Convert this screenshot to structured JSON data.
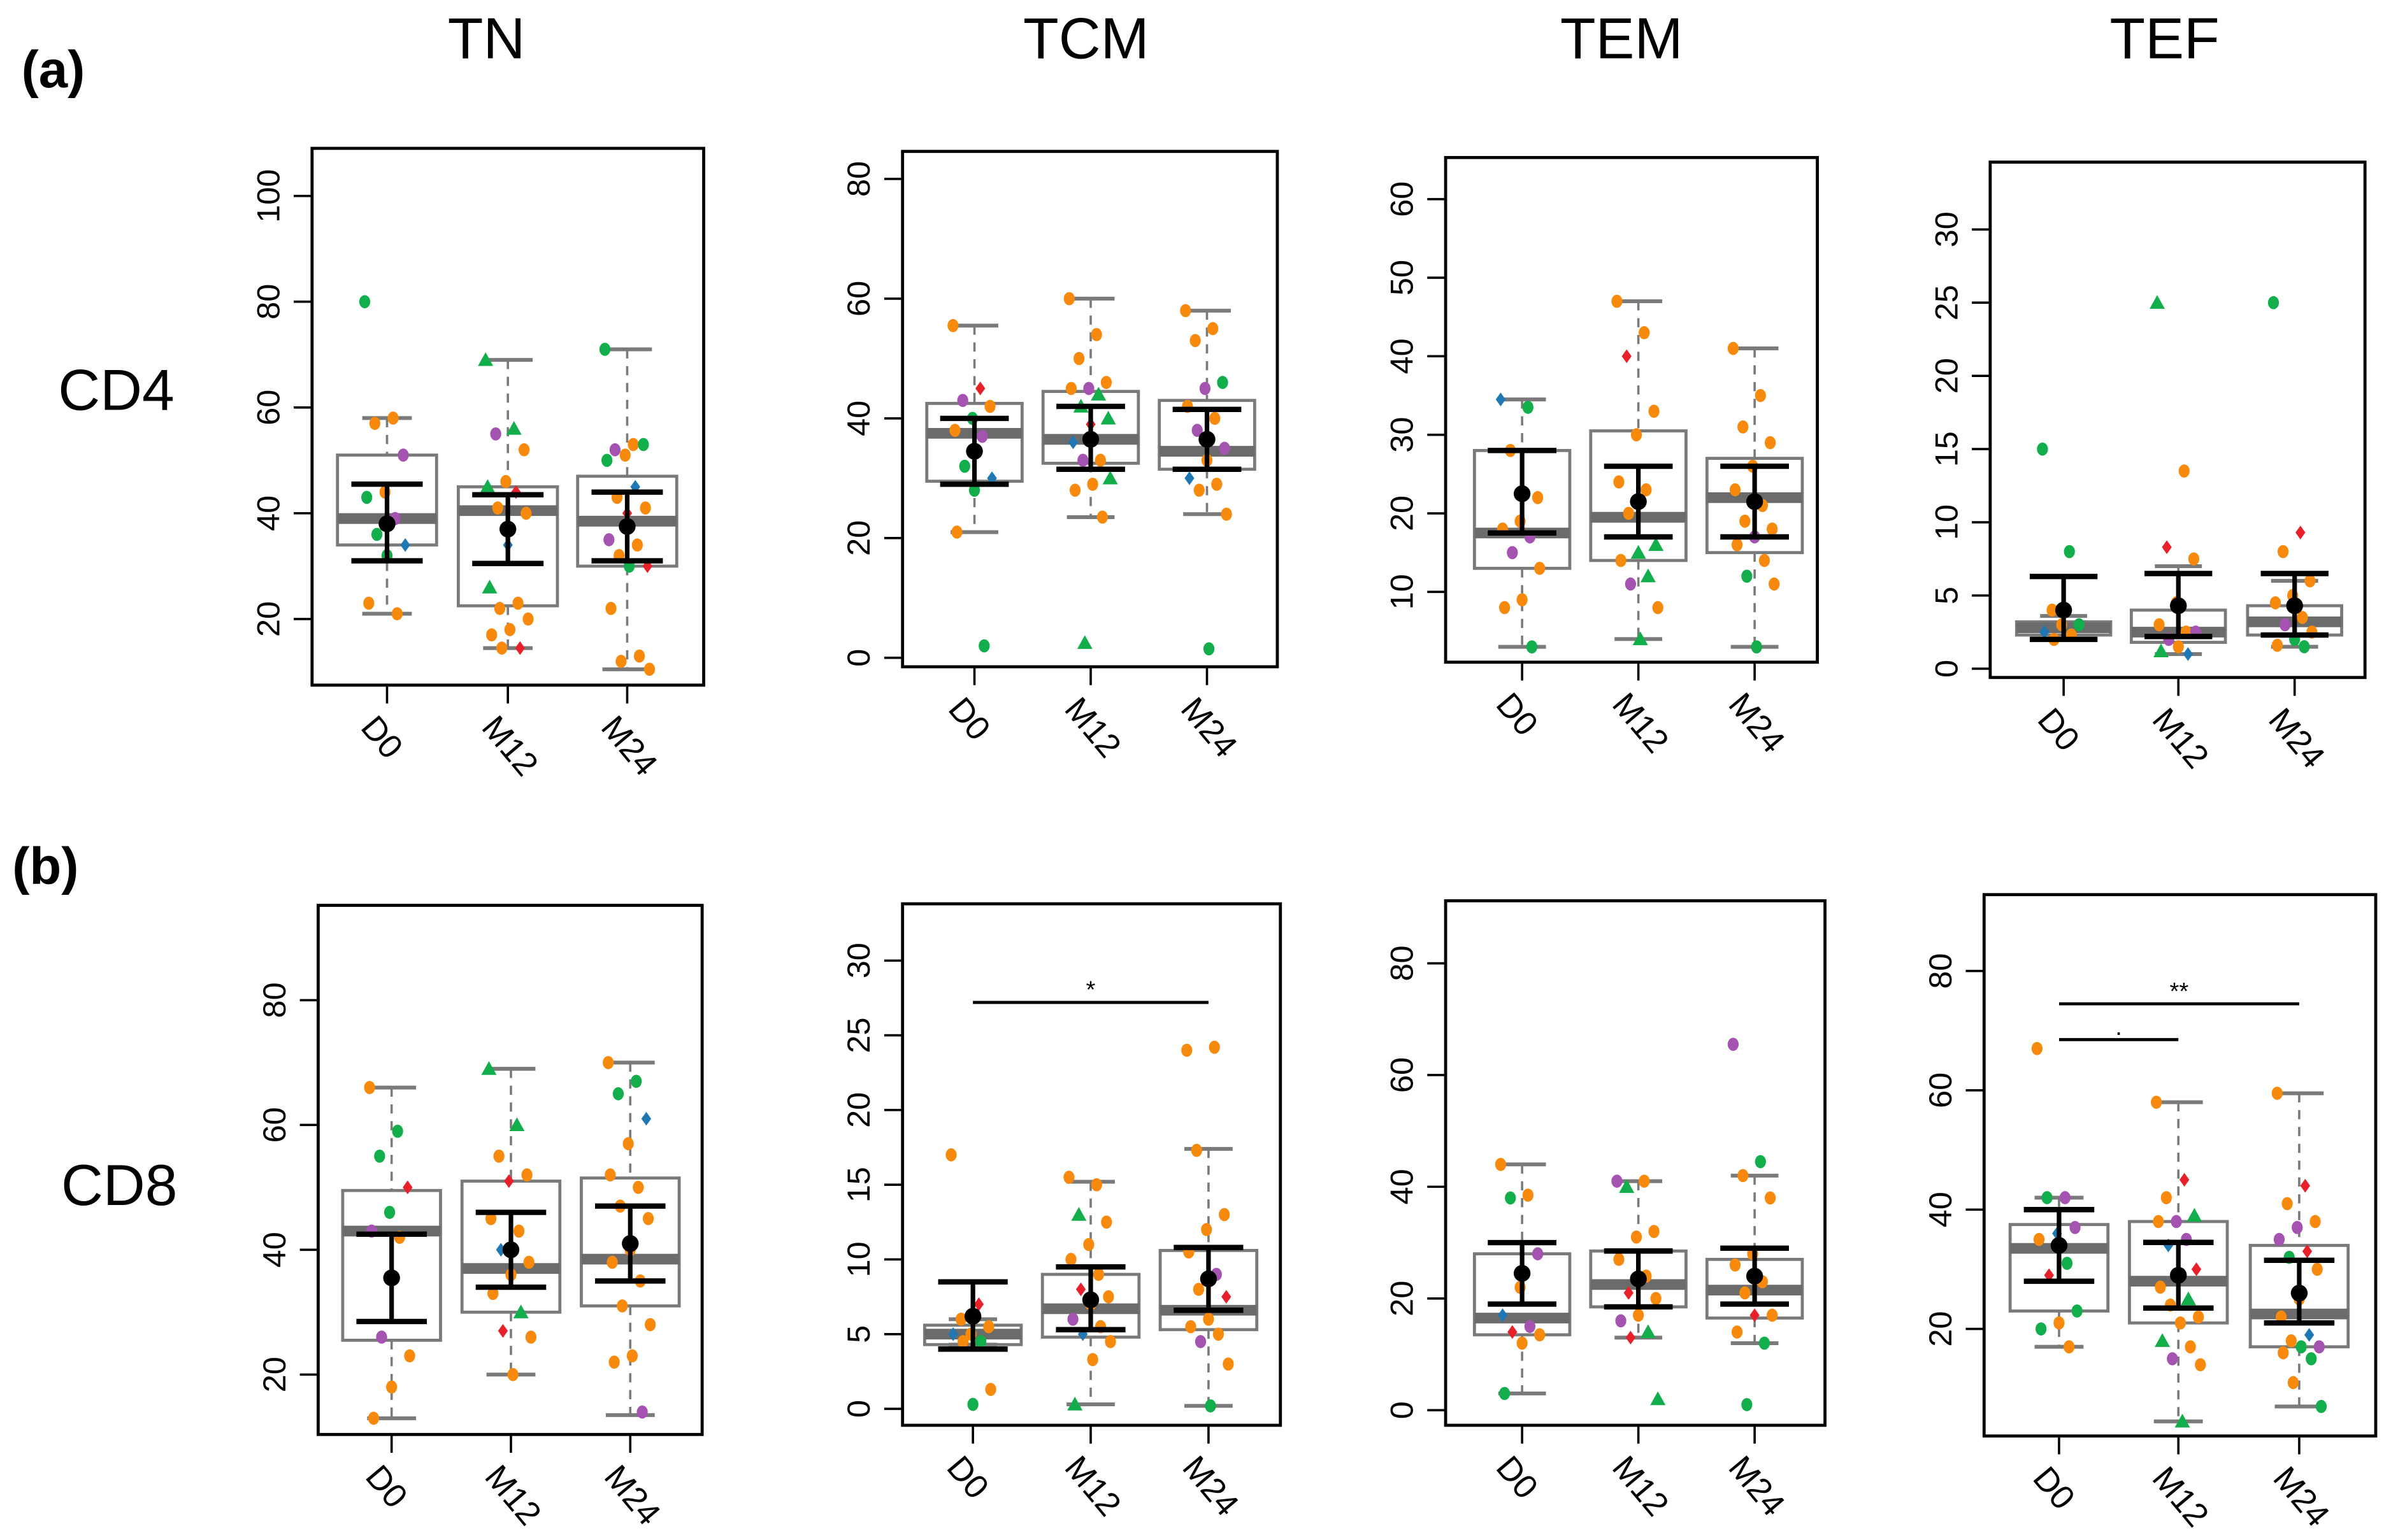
{
  "figure": {
    "panel_labels": [
      "(a)",
      "(b)"
    ],
    "row_labels": [
      "CD4",
      "CD8"
    ],
    "column_titles": [
      "TN",
      "TCM",
      "TEM",
      "TEF"
    ],
    "colors": {
      "o": "#F7890C",
      "g": "#12AE4B",
      "G": "#12AE4B",
      "p": "#A553B0",
      "b": "#1F78B4",
      "r": "#E8202A",
      "box": "#7a7a7a",
      "median": "#6b6b6b",
      "mean": "#000000"
    },
    "point_codes": {
      "o": "orange circle",
      "g": "green circle",
      "G": "green triangle",
      "p": "purple circle",
      "b": "blue diamond",
      "r": "red diamond"
    }
  },
  "chart_data": [
    {
      "type": "box",
      "row": "CD4",
      "title": "TN",
      "categories": [
        "D0",
        "M12",
        "M24"
      ],
      "ylim": [
        7.5,
        109
      ],
      "yticks": [
        20,
        40,
        60,
        80,
        100
      ],
      "groups": [
        {
          "whisker": [
            21,
            58
          ],
          "q1": 34,
          "median": 39,
          "q3": 51,
          "mean": 38,
          "ci": [
            31,
            45.5
          ],
          "points": "80g 58o 57o 51p 44o 43g 39p 36g 34b 32g 23o 21o"
        },
        {
          "whisker": [
            14.5,
            69
          ],
          "q1": 22.5,
          "median": 40.5,
          "q3": 45,
          "mean": 37,
          "ci": [
            30.5,
            43.5
          ],
          "points": "69G 56G 55p 52o 46o 45G 44r 41o 40o 34b 26G 23o 22o 20o 18o 17o 14.5r 14.5o"
        },
        {
          "whisker": [
            10.5,
            71
          ],
          "q1": 30,
          "median": 38.5,
          "q3": 47,
          "mean": 37.5,
          "ci": [
            31,
            44
          ],
          "points": "71g 53o 52p 53g 51o 50g 45b 43o 41o 40r 35p 34o 32o 30r 30g 22o 13o 12o 10.5o"
        }
      ],
      "significance": []
    },
    {
      "type": "box",
      "row": "CD4",
      "title": "TCM",
      "categories": [
        "D0",
        "M12",
        "M24"
      ],
      "ylim": [
        -1.5,
        84.6
      ],
      "yticks": [
        0,
        20,
        40,
        60,
        80
      ],
      "groups": [
        {
          "whisker": [
            21,
            55.5
          ],
          "q1": 29.5,
          "median": 37.5,
          "q3": 42.5,
          "mean": 34.5,
          "ci": [
            29,
            40
          ],
          "points": "55.5o 45r 43p 42o 40g 38o 37p 32g 30b 28g 21o 2g"
        },
        {
          "whisker": [
            23.5,
            60
          ],
          "q1": 32.5,
          "median": 36.5,
          "q3": 44.5,
          "mean": 36.5,
          "ci": [
            31.5,
            42
          ],
          "points": "60o 54o 50o 46o 45p 45o 44G 42G 40G 39r 36b 33o 33p 30G 29o 28o 23.5o 2.5G"
        },
        {
          "whisker": [
            24,
            58
          ],
          "q1": 31.5,
          "median": 34.5,
          "q3": 43,
          "mean": 36.5,
          "ci": [
            31.5,
            41.5
          ],
          "points": "58o 55o 53o 46g 45p 42o 40o 38p 35p 33o 30b 29o 28o 24o 1.5g"
        }
      ],
      "significance": []
    },
    {
      "type": "box",
      "row": "CD4",
      "title": "TEM",
      "categories": [
        "D0",
        "M12",
        "M24"
      ],
      "ylim": [
        1.05,
        65.3
      ],
      "yticks": [
        10,
        20,
        30,
        40,
        50,
        60
      ],
      "groups": [
        {
          "whisker": [
            3,
            34.5
          ],
          "q1": 13,
          "median": 17.5,
          "q3": 28,
          "mean": 22.5,
          "ci": [
            17.5,
            28
          ],
          "points": "34.5b 33.5g 28o 22o 19o 18o 17p 15p 13o 9o 8o 3g"
        },
        {
          "whisker": [
            4,
            47
          ],
          "q1": 14,
          "median": 19.5,
          "q3": 30.5,
          "mean": 21.5,
          "ci": [
            17,
            26
          ],
          "points": "47o 43o 40r 33o 30o 24o 23o 20o 16G 15G 14o 12G 11p 8o 4G"
        },
        {
          "whisker": [
            3,
            41
          ],
          "q1": 15,
          "median": 22,
          "q3": 27,
          "mean": 21.5,
          "ci": [
            17,
            26
          ],
          "points": "41o 35o 31o 29o 26o 23o 21o 19o 18o 17p 16o 14o 12g 11o 3g"
        }
      ],
      "significance": []
    },
    {
      "type": "box",
      "row": "CD4",
      "title": "TEF",
      "categories": [
        "D0",
        "M12",
        "M24"
      ],
      "ylim": [
        -0.6,
        34.6
      ],
      "yticks": [
        0,
        5,
        10,
        15,
        20,
        25,
        30
      ],
      "groups": [
        {
          "whisker": [
            2,
            3.6
          ],
          "q1": 2.3,
          "median": 2.8,
          "q3": 3.2,
          "mean": 4,
          "ci": [
            2,
            6.3
          ],
          "points": "15g 8g 4o 3g 3o 2.5b 2.3o 2o"
        },
        {
          "whisker": [
            1,
            7
          ],
          "q1": 1.8,
          "median": 2.5,
          "q3": 4,
          "mean": 4.3,
          "ci": [
            2.2,
            6.5
          ],
          "points": "25G 13.5o 8.3r 7.5o 4.5o 3o 2.5o 2p 2.5p 1.5o 1.2G 1b"
        },
        {
          "whisker": [
            1.5,
            6
          ],
          "q1": 2.3,
          "median": 3.2,
          "q3": 4.3,
          "mean": 4.3,
          "ci": [
            2.3,
            6.5
          ],
          "points": "25g 9.3r 8o 6o 5o 4.5o 3.5o 3p 2.5o 2g 1.6o 1.5g"
        }
      ],
      "significance": []
    },
    {
      "type": "box",
      "row": "CD8",
      "title": "TN",
      "categories": [
        "D0",
        "M12",
        "M24"
      ],
      "ylim": [
        10.4,
        95.2
      ],
      "yticks": [
        20,
        40,
        60,
        80
      ],
      "groups": [
        {
          "whisker": [
            13,
            66
          ],
          "q1": 25.5,
          "median": 43,
          "q3": 49.5,
          "mean": 35.5,
          "ci": [
            28.5,
            42.5
          ],
          "points": "66o 59g 55g 50r 46g 43p 42o 26p 23o 18o 13o"
        },
        {
          "whisker": [
            20,
            69
          ],
          "q1": 30,
          "median": 37,
          "q3": 51,
          "mean": 40,
          "ci": [
            34,
            46
          ],
          "points": "69G 60G 55o 52o 51r 45o 43o 40b 38o 36o 33o 30G 27r 26o 20o"
        },
        {
          "whisker": [
            13.5,
            70
          ],
          "q1": 31,
          "median": 38.5,
          "q3": 51.5,
          "mean": 41,
          "ci": [
            35,
            47
          ],
          "points": "70o 67g 65g 61b 57o 52o 50o 47o 45o 40o 38o 35o 31o 28o 23o 22o 14p"
        }
      ],
      "significance": []
    },
    {
      "type": "box",
      "row": "CD8",
      "title": "TCM",
      "categories": [
        "D0",
        "M12",
        "M24"
      ],
      "ylim": [
        -1.1,
        33.8
      ],
      "yticks": [
        0,
        5,
        10,
        15,
        20,
        25,
        30
      ],
      "groups": [
        {
          "whisker": [
            4.3,
            6
          ],
          "q1": 4.3,
          "median": 5,
          "q3": 5.6,
          "mean": 6.2,
          "ci": [
            4,
            8.5
          ],
          "points": "17o 7r 6o 5.5o 5o 5b 4.5g 4.5o 1.3o 0.3g"
        },
        {
          "whisker": [
            0.3,
            15.2
          ],
          "q1": 4.8,
          "median": 6.7,
          "q3": 9,
          "mean": 7.3,
          "ci": [
            5.3,
            9.5
          ],
          "points": "15.5o 15o 13G 12.5o 11o 10o 9o 8r 7.5o 7o 6p 5.5o 5b 4.5o 3.3o 0.3G"
        },
        {
          "whisker": [
            0.2,
            17.4
          ],
          "q1": 5.3,
          "median": 6.6,
          "q3": 10.6,
          "mean": 8.7,
          "ci": [
            6.6,
            10.8
          ],
          "points": "24o 24.2o 17.3o 13o 12o 10.5o 9p 8o 7.5r 6o 5.5o 5o 4.5p 3o 0.2g"
        }
      ],
      "significance": [
        {
          "from": "D0",
          "to": "M24",
          "label": "*",
          "y": 27.2
        }
      ]
    },
    {
      "type": "box",
      "row": "CD8",
      "title": "TEM",
      "categories": [
        "D0",
        "M12",
        "M24"
      ],
      "ylim": [
        -2.7,
        91.2
      ],
      "yticks": [
        0,
        20,
        40,
        60,
        80
      ],
      "groups": [
        {
          "whisker": [
            3,
            44
          ],
          "q1": 13.5,
          "median": 16.5,
          "q3": 28,
          "mean": 24.5,
          "ci": [
            19,
            30
          ],
          "points": "44o 38.5o 38g 28p 22o 17b 15p 14r 13.5o 12o 3g"
        },
        {
          "whisker": [
            13,
            41
          ],
          "q1": 18.5,
          "median": 22.5,
          "q3": 28.5,
          "mean": 23.5,
          "ci": [
            18.5,
            28.5
          ],
          "points": "41p 41o 40G 32o 31o 27o 24o 21r 20o 17o 16p 14G 13r 2G"
        },
        {
          "whisker": [
            12,
            42
          ],
          "q1": 16.5,
          "median": 21.5,
          "q3": 27,
          "mean": 24,
          "ci": [
            19,
            29
          ],
          "points": "65.5p 44.5g 42o 38o 28o 26o 23o 21o 17o 17r 14o 12g 1g"
        }
      ],
      "significance": []
    },
    {
      "type": "box",
      "row": "CD8",
      "title": "TEF",
      "categories": [
        "D0",
        "M12",
        "M24"
      ],
      "ylim": [
        2.05,
        92.8
      ],
      "yticks": [
        20,
        40,
        60,
        80
      ],
      "groups": [
        {
          "whisker": [
            17,
            42
          ],
          "q1": 23,
          "median": 33.5,
          "q3": 37.5,
          "mean": 34,
          "ci": [
            28,
            40
          ],
          "points": "67o 42p 42g 37p 36b 35o 31g 29r 23g 21o 20g 17o"
        },
        {
          "whisker": [
            4.5,
            58
          ],
          "q1": 21,
          "median": 28,
          "q3": 38,
          "mean": 29,
          "ci": [
            23.5,
            34.5
          ],
          "points": "58o 45r 42o 39G 38p 38o 35p 34b 30r 29o 27o 25G 24o 22o 21o 18G 17o 15p 14o 4.5G"
        },
        {
          "whisker": [
            7,
            59.5
          ],
          "q1": 17,
          "median": 22.5,
          "q3": 34,
          "mean": 26,
          "ci": [
            21,
            31.5
          ],
          "points": "59.5o 44r 41o 38o 37p 35p 33r 32g 30o 25o 22o 19b 18o 17p 17g 16o 15g 11o 7g"
        }
      ],
      "significance": [
        {
          "from": "D0",
          "to": "M12",
          "label": ".",
          "y": 68.5
        },
        {
          "from": "D0",
          "to": "M24",
          "label": "**",
          "y": 74.5
        }
      ]
    }
  ]
}
